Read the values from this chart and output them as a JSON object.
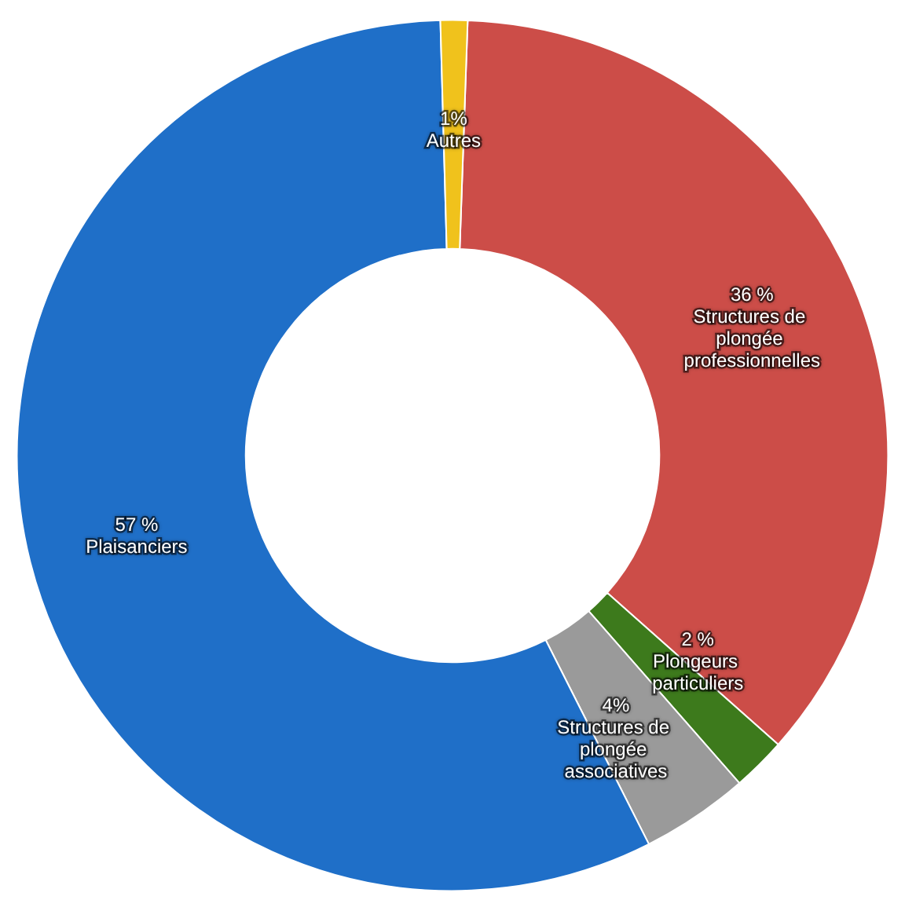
{
  "chart_data": {
    "type": "donut",
    "categories": [
      "Structures de plongée professionnelles",
      "Plongeurs particuliers",
      "Structures de plongée associatives",
      "Plaisanciers",
      "Autres"
    ],
    "values": [
      36,
      2,
      4,
      57,
      1
    ],
    "value_labels": [
      "36 %",
      "2 %",
      "4%",
      "57 %",
      "1%"
    ],
    "colors": [
      "#cc4d48",
      "#3d7a1c",
      "#9a9a9a",
      "#1f6fc8",
      "#f0c21c"
    ],
    "legend": false
  }
}
